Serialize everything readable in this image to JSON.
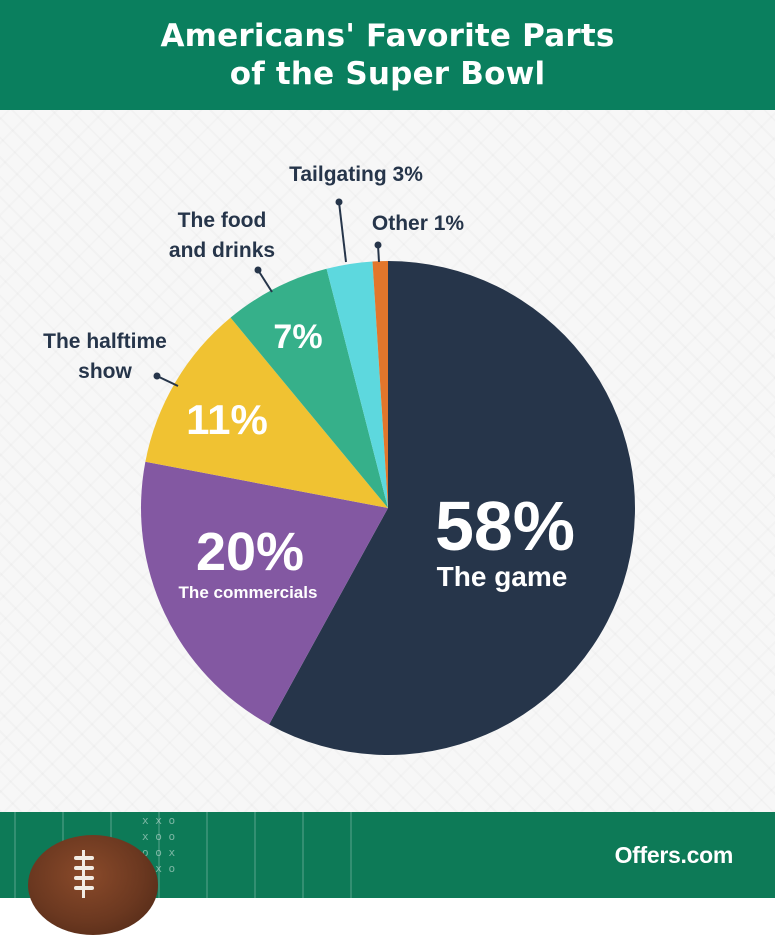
{
  "header": {
    "title_line1": "Americans' Favorite Parts",
    "title_line2": "of the Super Bowl"
  },
  "chart_data": {
    "type": "pie",
    "title": "Americans' Favorite Parts of the Super Bowl",
    "start": "12 o'clock, clockwise",
    "slices": [
      {
        "id": "game",
        "label": "The game",
        "value": 58,
        "display": "58%",
        "color": "#26354a",
        "label_style": "inside"
      },
      {
        "id": "commercials",
        "label": "The commercials",
        "value": 20,
        "display": "20%",
        "color": "#8358a2",
        "label_style": "inside"
      },
      {
        "id": "halftime",
        "label_line1": "The halftime",
        "label_line2": "show",
        "value": 11,
        "display": "11%",
        "color": "#f0c232",
        "label_style": "inside-pct-outside-label"
      },
      {
        "id": "food",
        "label_line1": "The food",
        "label_line2": "and drinks",
        "value": 7,
        "display": "7%",
        "color": "#36b08a",
        "label_style": "inside-pct-outside-label"
      },
      {
        "id": "tailgating",
        "label": "Tailgating 3%",
        "value": 3,
        "display": "3%",
        "color": "#5dd8de",
        "label_style": "outside"
      },
      {
        "id": "other",
        "label": "Other 1%",
        "value": 1,
        "display": "1%",
        "color": "#e2762b",
        "label_style": "outside"
      }
    ]
  },
  "colors": {
    "header_bg": "#0a7f5e",
    "footer_bg": "#0d7a57",
    "label_dark": "#26354a",
    "label_light": "#ffffff"
  },
  "footer": {
    "brand": "Offers.com",
    "play_marks": [
      "x x o",
      "x o o",
      "o o x",
      "x x o"
    ]
  }
}
